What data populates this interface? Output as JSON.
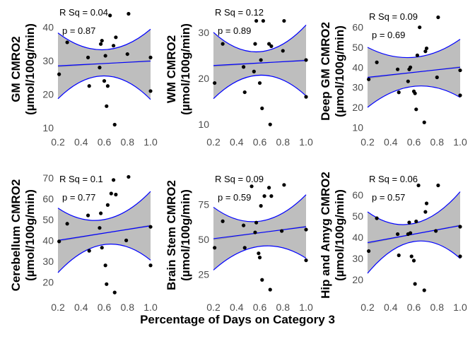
{
  "figure": {
    "xlabel": "Percentage of Days on Category 3"
  },
  "colors": {
    "band_fill": "#bebebe",
    "ci_line": "#0000ff",
    "fit_line": "#0000ff",
    "gray_fit": "#999999",
    "point": "#000000"
  },
  "chart_data": [
    {
      "type": "scatter",
      "title": "",
      "ylabel_line1": "GM CMRO2",
      "ylabel_line2": "(µmol/100g/min)",
      "xlabel": "Percentage of Days on Category 3",
      "rsq_label": "R Sq =  0.04",
      "p_label": "p =  0.87",
      "xlim": [
        0.2,
        1.0
      ],
      "ylim": [
        9,
        46
      ],
      "xticks": [
        "0.2",
        "0.4",
        "0.6",
        "0.8",
        "1.0"
      ],
      "yticks": [
        10,
        20,
        30,
        40
      ],
      "fit": [
        28.5,
        29.9
      ],
      "ci_lower": [
        18.7,
        25.5,
        18.5
      ],
      "ci_upper": [
        38.3,
        33.3,
        39.4
      ],
      "points": [
        {
          "x": 0.21,
          "y": 26
        },
        {
          "x": 0.28,
          "y": 35.5
        },
        {
          "x": 0.46,
          "y": 31
        },
        {
          "x": 0.47,
          "y": 22.5
        },
        {
          "x": 0.56,
          "y": 28
        },
        {
          "x": 0.57,
          "y": 35
        },
        {
          "x": 0.58,
          "y": 36
        },
        {
          "x": 0.6,
          "y": 24
        },
        {
          "x": 0.61,
          "y": 31.5
        },
        {
          "x": 0.62,
          "y": 16.5
        },
        {
          "x": 0.63,
          "y": 22.5
        },
        {
          "x": 0.65,
          "y": 43.5
        },
        {
          "x": 0.68,
          "y": 34.5
        },
        {
          "x": 0.69,
          "y": 11
        },
        {
          "x": 0.7,
          "y": 37
        },
        {
          "x": 0.8,
          "y": 32
        },
        {
          "x": 0.81,
          "y": 44
        },
        {
          "x": 1.0,
          "y": 31
        },
        {
          "x": 1.0,
          "y": 21
        }
      ]
    },
    {
      "type": "scatter",
      "title": "",
      "ylabel_line1": "WM CMRO2",
      "ylabel_line2": "(µmol/100g/min)",
      "xlabel": "Percentage of Days on Category 3",
      "rsq_label": "R Sq =  0.12",
      "p_label": "p =  0.89",
      "xlim": [
        0.2,
        1.0
      ],
      "ylim": [
        8.5,
        35.5
      ],
      "xticks": [
        "0.2",
        "0.4",
        "0.6",
        "0.8",
        "1.0"
      ],
      "yticks": [
        10,
        20,
        30
      ],
      "fit": [
        22.8,
        23.9
      ],
      "ci_lower": [
        15.6,
        20.7,
        16.2
      ],
      "ci_upper": [
        30.0,
        25.8,
        31.6
      ],
      "points": [
        {
          "x": 0.21,
          "y": 19
        },
        {
          "x": 0.28,
          "y": 27.5
        },
        {
          "x": 0.46,
          "y": 22.5
        },
        {
          "x": 0.47,
          "y": 17
        },
        {
          "x": 0.55,
          "y": 21.5
        },
        {
          "x": 0.56,
          "y": 27.5
        },
        {
          "x": 0.57,
          "y": 32.5
        },
        {
          "x": 0.6,
          "y": 19
        },
        {
          "x": 0.61,
          "y": 24
        },
        {
          "x": 0.62,
          "y": 13.5
        },
        {
          "x": 0.63,
          "y": 32.5
        },
        {
          "x": 0.68,
          "y": 27.5
        },
        {
          "x": 0.69,
          "y": 10
        },
        {
          "x": 0.7,
          "y": 27
        },
        {
          "x": 0.8,
          "y": 26
        },
        {
          "x": 0.81,
          "y": 32.5
        },
        {
          "x": 1.0,
          "y": 24
        },
        {
          "x": 1.0,
          "y": 16
        }
      ]
    },
    {
      "type": "scatter",
      "title": "",
      "ylabel_line1": "Deep GM CMRO2",
      "ylabel_line2": "(µmol/100g/min)",
      "xlabel": "Percentage of Days on Category 3",
      "rsq_label": "R Sq =  0.09",
      "p_label": "p =  0.69",
      "xlim": [
        0.2,
        1.0
      ],
      "ylim": [
        8,
        68
      ],
      "xticks": [
        "0.2",
        "0.4",
        "0.6",
        "0.8",
        "1.0"
      ],
      "yticks": [
        10,
        20,
        30,
        40,
        50,
        60
      ],
      "fit": [
        35.0,
        40.0
      ],
      "ci_lower": [
        20.0,
        30.5,
        25.0
      ],
      "ci_upper": [
        50.0,
        45.0,
        54.0
      ],
      "points": [
        {
          "x": 0.21,
          "y": 34
        },
        {
          "x": 0.28,
          "y": 42.5
        },
        {
          "x": 0.46,
          "y": 39
        },
        {
          "x": 0.47,
          "y": 27.5
        },
        {
          "x": 0.55,
          "y": 33
        },
        {
          "x": 0.56,
          "y": 39
        },
        {
          "x": 0.57,
          "y": 40
        },
        {
          "x": 0.6,
          "y": 28
        },
        {
          "x": 0.61,
          "y": 27
        },
        {
          "x": 0.62,
          "y": 19
        },
        {
          "x": 0.63,
          "y": 46
        },
        {
          "x": 0.65,
          "y": 60
        },
        {
          "x": 0.69,
          "y": 12.5
        },
        {
          "x": 0.7,
          "y": 48
        },
        {
          "x": 0.71,
          "y": 49.5
        },
        {
          "x": 0.8,
          "y": 35
        },
        {
          "x": 0.81,
          "y": 65
        },
        {
          "x": 1.0,
          "y": 38.5
        },
        {
          "x": 1.0,
          "y": 26
        }
      ]
    },
    {
      "type": "scatter",
      "title": "",
      "ylabel_line1": "Cerebellum CMRO2",
      "ylabel_line2": "(µmol/100g/min)",
      "xlabel": "Percentage of Days on Category 3",
      "rsq_label": "R Sq =  0.1",
      "p_label": "p =  0.77",
      "xlim": [
        0.2,
        1.0
      ],
      "ylim": [
        13,
        72
      ],
      "xticks": [
        "0.2",
        "0.4",
        "0.6",
        "0.8",
        "1.0"
      ],
      "yticks": [
        20,
        30,
        40,
        50,
        60,
        70
      ],
      "fit": [
        40.0,
        47.0
      ],
      "ci_lower": [
        24.5,
        38.0,
        30.5
      ],
      "ci_upper": [
        55.5,
        50.0,
        63.5
      ],
      "points": [
        {
          "x": 0.21,
          "y": 39.5
        },
        {
          "x": 0.28,
          "y": 48
        },
        {
          "x": 0.46,
          "y": 52
        },
        {
          "x": 0.47,
          "y": 35
        },
        {
          "x": 0.56,
          "y": 46
        },
        {
          "x": 0.57,
          "y": 53
        },
        {
          "x": 0.58,
          "y": 36.5
        },
        {
          "x": 0.61,
          "y": 28
        },
        {
          "x": 0.62,
          "y": 19
        },
        {
          "x": 0.63,
          "y": 57
        },
        {
          "x": 0.66,
          "y": 62.5
        },
        {
          "x": 0.68,
          "y": 69
        },
        {
          "x": 0.69,
          "y": 15
        },
        {
          "x": 0.7,
          "y": 62
        },
        {
          "x": 0.79,
          "y": 40
        },
        {
          "x": 0.81,
          "y": 70.5
        },
        {
          "x": 1.0,
          "y": 46.5
        },
        {
          "x": 1.0,
          "y": 28
        }
      ]
    },
    {
      "type": "scatter",
      "title": "",
      "ylabel_line1": "Brain Stem CMRO2",
      "ylabel_line2": "(µmol/100g/min)",
      "xlabel": "Percentage of Days on Category 3",
      "rsq_label": "R Sq =  0.09",
      "p_label": "p =  0.59",
      "xlim": [
        0.2,
        1.0
      ],
      "ylim": [
        9,
        97
      ],
      "xticks": [
        "0.2",
        "0.4",
        "0.6",
        "0.8",
        "1.0"
      ],
      "yticks": [
        25,
        50,
        75
      ],
      "fit": [
        50.5,
        59.0
      ],
      "ci_lower": [
        28.0,
        45.0,
        36.5
      ],
      "ci_upper": [
        73.0,
        63.0,
        82.0
      ],
      "points": [
        {
          "x": 0.21,
          "y": 44
        },
        {
          "x": 0.28,
          "y": 63
        },
        {
          "x": 0.46,
          "y": 60
        },
        {
          "x": 0.47,
          "y": 44
        },
        {
          "x": 0.53,
          "y": 88
        },
        {
          "x": 0.56,
          "y": 55
        },
        {
          "x": 0.57,
          "y": 62
        },
        {
          "x": 0.59,
          "y": 40
        },
        {
          "x": 0.6,
          "y": 37
        },
        {
          "x": 0.61,
          "y": 74
        },
        {
          "x": 0.62,
          "y": 21
        },
        {
          "x": 0.64,
          "y": 81
        },
        {
          "x": 0.68,
          "y": 87
        },
        {
          "x": 0.69,
          "y": 14
        },
        {
          "x": 0.7,
          "y": 81
        },
        {
          "x": 0.79,
          "y": 56
        },
        {
          "x": 0.81,
          "y": 89
        },
        {
          "x": 1.0,
          "y": 57
        },
        {
          "x": 1.0,
          "y": 35
        }
      ]
    },
    {
      "type": "scatter",
      "title": "",
      "ylabel_line1": "Hip and Amyg CMRO2",
      "ylabel_line2": "(µmol/100g/min)",
      "xlabel": "Percentage of Days on Category 3",
      "rsq_label": "R Sq =  0.06",
      "p_label": "p =  0.57",
      "xlim": [
        0.2,
        1.0
      ],
      "ylim": [
        12,
        70
      ],
      "xticks": [
        "0.2",
        "0.4",
        "0.6",
        "0.8",
        "1.0"
      ],
      "yticks": [
        20,
        30,
        40,
        50,
        60
      ],
      "fit": [
        37.5,
        45.5
      ],
      "ci_lower": [
        23.0,
        38.0,
        30.0
      ],
      "ci_upper": [
        52.0,
        46.5,
        61.5
      ],
      "points": [
        {
          "x": 0.21,
          "y": 33.5
        },
        {
          "x": 0.28,
          "y": 49
        },
        {
          "x": 0.46,
          "y": 41.5
        },
        {
          "x": 0.47,
          "y": 31.5
        },
        {
          "x": 0.55,
          "y": 41.5
        },
        {
          "x": 0.56,
          "y": 47
        },
        {
          "x": 0.57,
          "y": 42
        },
        {
          "x": 0.58,
          "y": 31
        },
        {
          "x": 0.6,
          "y": 29
        },
        {
          "x": 0.61,
          "y": 18
        },
        {
          "x": 0.62,
          "y": 47.5
        },
        {
          "x": 0.64,
          "y": 64.5
        },
        {
          "x": 0.69,
          "y": 15
        },
        {
          "x": 0.7,
          "y": 52
        },
        {
          "x": 0.71,
          "y": 56
        },
        {
          "x": 0.79,
          "y": 43
        },
        {
          "x": 0.81,
          "y": 64.5
        },
        {
          "x": 1.0,
          "y": 45
        },
        {
          "x": 1.0,
          "y": 31
        }
      ]
    }
  ]
}
